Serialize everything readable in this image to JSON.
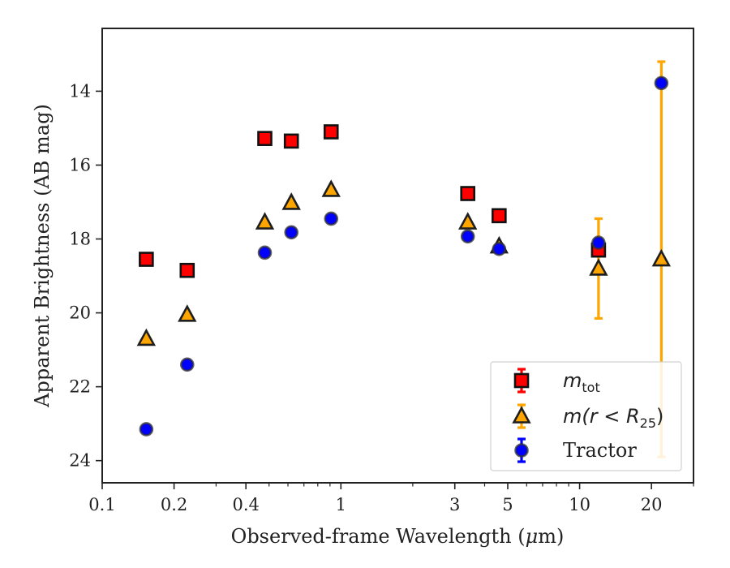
{
  "chart_data": {
    "type": "scatter",
    "xlabel_prefix": "Observed-frame Wavelength (",
    "xlabel_unit_greek": "μ",
    "xlabel_suffix": "m)",
    "ylabel": "Apparent Brightness (AB mag)",
    "x_scale": "log",
    "xlim": [
      0.1,
      30
    ],
    "ylim": [
      24.6,
      12.3
    ],
    "y_inverted": true,
    "x_ticks": [
      0.1,
      0.2,
      0.4,
      1,
      3,
      5,
      10,
      20
    ],
    "x_tick_labels": [
      "0.1",
      "0.2",
      "0.4",
      "1",
      "3",
      "5",
      "10",
      "20"
    ],
    "y_ticks": [
      14,
      16,
      18,
      20,
      22,
      24
    ],
    "y_tick_labels": [
      "14",
      "16",
      "18",
      "20",
      "22",
      "24"
    ],
    "grid": false,
    "legend_position": "lower-right",
    "series": [
      {
        "key": "mtot",
        "legend_main": "m",
        "legend_sub": "tot",
        "marker": "square",
        "color": "#ff0000",
        "errcolor": "#ff0000",
        "points": [
          {
            "x": 0.153,
            "y": 18.55,
            "yerr": 0
          },
          {
            "x": 0.227,
            "y": 18.85,
            "yerr": 0
          },
          {
            "x": 0.48,
            "y": 15.28,
            "yerr": 0
          },
          {
            "x": 0.62,
            "y": 15.35,
            "yerr": 0
          },
          {
            "x": 0.91,
            "y": 15.1,
            "yerr": 0
          },
          {
            "x": 3.4,
            "y": 16.77,
            "yerr": 0
          },
          {
            "x": 4.6,
            "y": 17.37,
            "yerr": 0
          },
          {
            "x": 12.0,
            "y": 18.3,
            "yerr": 0
          }
        ]
      },
      {
        "key": "mr25",
        "legend_main": "m(r < R",
        "legend_sub": "25",
        "legend_tail": ")",
        "marker": "triangle",
        "color": "#ffa500",
        "errcolor": "#ffa500",
        "points": [
          {
            "x": 0.153,
            "y": 20.7,
            "yerr": 0
          },
          {
            "x": 0.227,
            "y": 20.05,
            "yerr": 0
          },
          {
            "x": 0.48,
            "y": 17.55,
            "yerr": 0
          },
          {
            "x": 0.62,
            "y": 17.02,
            "yerr": 0
          },
          {
            "x": 0.91,
            "y": 16.67,
            "yerr": 0
          },
          {
            "x": 3.4,
            "y": 17.55,
            "yerr": 0
          },
          {
            "x": 4.6,
            "y": 18.2,
            "yerr": 0
          },
          {
            "x": 12.0,
            "y": 18.8,
            "yerr": 1.35
          },
          {
            "x": 22.0,
            "y": 18.55,
            "yerr": 5.35
          }
        ]
      },
      {
        "key": "tractor",
        "legend_main": "Tractor",
        "marker": "circle",
        "color": "#0000ff",
        "errcolor": "#0000ff",
        "points": [
          {
            "x": 0.153,
            "y": 23.15,
            "yerr": 0
          },
          {
            "x": 0.227,
            "y": 21.4,
            "yerr": 0
          },
          {
            "x": 0.48,
            "y": 18.37,
            "yerr": 0
          },
          {
            "x": 0.62,
            "y": 17.82,
            "yerr": 0
          },
          {
            "x": 0.91,
            "y": 17.45,
            "yerr": 0
          },
          {
            "x": 3.4,
            "y": 17.93,
            "yerr": 0
          },
          {
            "x": 4.6,
            "y": 18.27,
            "yerr": 0
          },
          {
            "x": 12.0,
            "y": 18.1,
            "yerr": 0.1
          },
          {
            "x": 22.0,
            "y": 13.78,
            "yerr": 0
          }
        ]
      }
    ]
  }
}
